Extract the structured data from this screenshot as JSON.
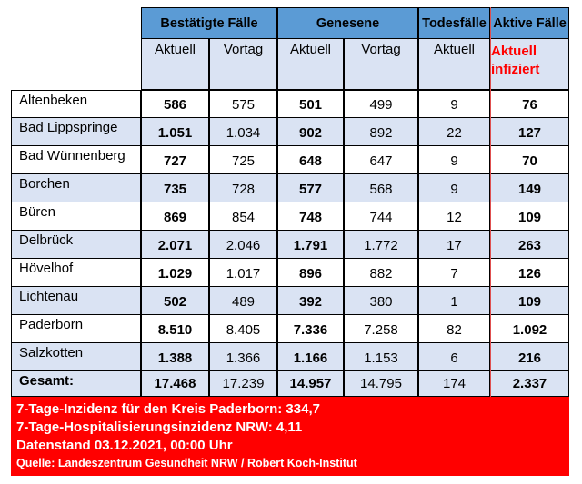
{
  "headers": {
    "group": [
      "Bestätigte Fälle",
      "Genesene",
      "Todesfälle",
      "Aktive Fälle"
    ],
    "sub": [
      "Aktuell",
      "Vortag",
      "Aktuell",
      "Vortag",
      "Aktuell"
    ],
    "active_sub": [
      "Aktuell",
      "infiziert"
    ]
  },
  "rows": [
    {
      "name": "Altenbeken",
      "b_akt": "586",
      "b_vor": "575",
      "g_akt": "501",
      "g_vor": "499",
      "t_akt": "9",
      "aktiv": "76"
    },
    {
      "name": "Bad Lippspringe",
      "b_akt": "1.051",
      "b_vor": "1.034",
      "g_akt": "902",
      "g_vor": "892",
      "t_akt": "22",
      "aktiv": "127"
    },
    {
      "name": "Bad Wünnenberg",
      "b_akt": "727",
      "b_vor": "725",
      "g_akt": "648",
      "g_vor": "647",
      "t_akt": "9",
      "aktiv": "70"
    },
    {
      "name": "Borchen",
      "b_akt": "735",
      "b_vor": "728",
      "g_akt": "577",
      "g_vor": "568",
      "t_akt": "9",
      "aktiv": "149"
    },
    {
      "name": "Büren",
      "b_akt": "869",
      "b_vor": "854",
      "g_akt": "748",
      "g_vor": "744",
      "t_akt": "12",
      "aktiv": "109"
    },
    {
      "name": "Delbrück",
      "b_akt": "2.071",
      "b_vor": "2.046",
      "g_akt": "1.791",
      "g_vor": "1.772",
      "t_akt": "17",
      "aktiv": "263"
    },
    {
      "name": "Hövelhof",
      "b_akt": "1.029",
      "b_vor": "1.017",
      "g_akt": "896",
      "g_vor": "882",
      "t_akt": "7",
      "aktiv": "126"
    },
    {
      "name": "Lichtenau",
      "b_akt": "502",
      "b_vor": "489",
      "g_akt": "392",
      "g_vor": "380",
      "t_akt": "1",
      "aktiv": "109"
    },
    {
      "name": "Paderborn",
      "b_akt": "8.510",
      "b_vor": "8.405",
      "g_akt": "7.336",
      "g_vor": "7.258",
      "t_akt": "82",
      "aktiv": "1.092"
    },
    {
      "name": "Salzkotten",
      "b_akt": "1.388",
      "b_vor": "1.366",
      "g_akt": "1.166",
      "g_vor": "1.153",
      "t_akt": "6",
      "aktiv": "216"
    }
  ],
  "total": {
    "name": "Gesamt:",
    "b_akt": "17.468",
    "b_vor": "17.239",
    "g_akt": "14.957",
    "g_vor": "14.795",
    "t_akt": "174",
    "aktiv": "2.337"
  },
  "footer": {
    "line1": "7-Tage-Inzidenz für den Kreis Paderborn: 334,7",
    "line2": "7-Tage-Hospitalisierungsinzidenz NRW: 4,11",
    "line3": "Datenstand 03.12.2021, 00:00 Uhr",
    "source": "Quelle: Landeszentrum Gesundheit NRW / Robert Koch-Institut"
  }
}
